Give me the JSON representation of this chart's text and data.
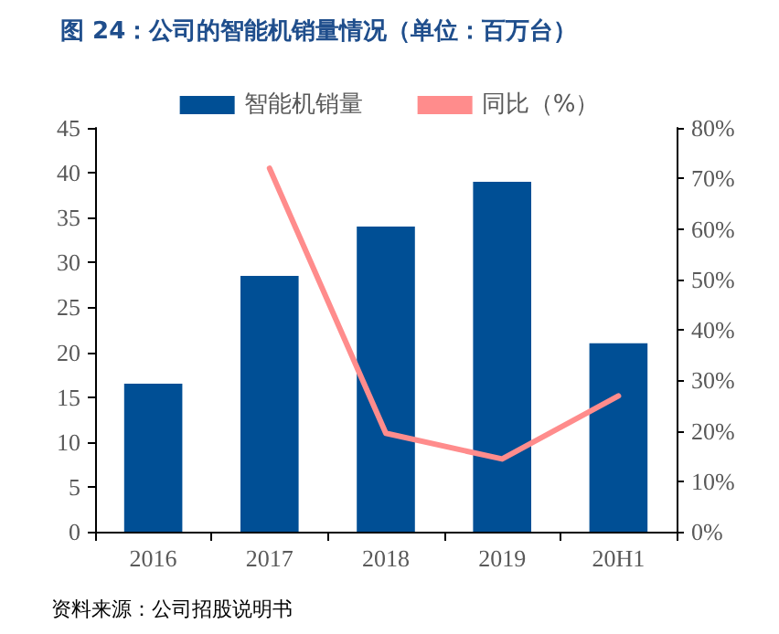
{
  "chart_data": {
    "type": "bar",
    "title": "图 24：公司的智能机销量情况（单位：百万台）",
    "annotations": [
      "资料来源：公司招股说明书"
    ],
    "categories": [
      "2016",
      "2017",
      "2018",
      "2019",
      "20H1"
    ],
    "series": [
      {
        "name": "智能机销量",
        "color": "#004f95",
        "values": [
          16.5,
          28.5,
          34,
          39,
          21
        ]
      },
      {
        "name": "同比（%）",
        "type": "line",
        "axis": "y2",
        "color": "#ff8c8c",
        "values": [
          null,
          72,
          19.5,
          14.4,
          26.9
        ]
      }
    ],
    "ylim": [
      0,
      45
    ],
    "yticks": [
      0,
      5,
      10,
      15,
      20,
      25,
      30,
      35,
      40,
      45
    ],
    "y2lim": [
      0,
      80
    ],
    "y2ticks": [
      {
        "value": 0,
        "label": "0%"
      },
      {
        "value": 10,
        "label": "10%"
      },
      {
        "value": 20,
        "label": "20%"
      },
      {
        "value": 30,
        "label": "30%"
      },
      {
        "value": 40,
        "label": "40%"
      },
      {
        "value": 50,
        "label": "50%"
      },
      {
        "value": 60,
        "label": "60%"
      },
      {
        "value": 70,
        "label": "70%"
      },
      {
        "value": 80,
        "label": "80%"
      }
    ],
    "grid": false,
    "legend": "top",
    "marker": "none",
    "line_style": "solid"
  }
}
